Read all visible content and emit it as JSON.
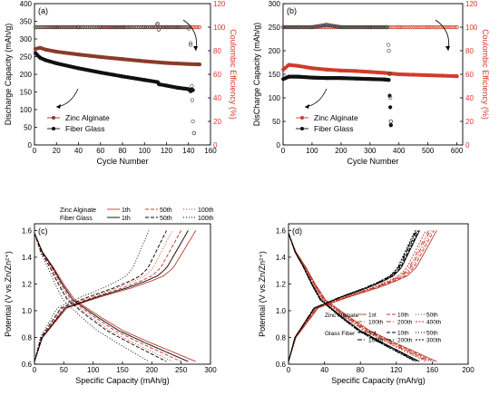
{
  "chart_data": [
    {
      "panel": "(a)",
      "type": "scatter",
      "xlabel": "Cycle Number",
      "ylabel": "Discharge Capacity (mAh/g)",
      "y2label": "Coulombic Efficiency (%)",
      "xlim": [
        0,
        160
      ],
      "ylim": [
        0,
        400
      ],
      "y2lim": [
        0,
        120
      ],
      "xticks": [
        0,
        20,
        40,
        60,
        80,
        100,
        120,
        140,
        160
      ],
      "yticks": [
        0,
        50,
        100,
        150,
        200,
        250,
        300,
        350,
        400
      ],
      "y2ticks": [
        0,
        20,
        40,
        60,
        80,
        100,
        120
      ],
      "y2ticklabels": [
        "0",
        "20",
        "40",
        "60",
        "80",
        "100",
        "120"
      ],
      "legend": [
        "Zinc Alginate",
        "Fiber Glass"
      ],
      "series": [
        {
          "name": "Zinc Alginate",
          "axis": "left",
          "color": "#8b3a2a",
          "x": [
            1,
            5,
            10,
            20,
            40,
            60,
            80,
            100,
            120,
            140,
            150
          ],
          "y": [
            272,
            275,
            270,
            264,
            256,
            249,
            243,
            237,
            232,
            229,
            228
          ]
        },
        {
          "name": "Fiber Glass",
          "axis": "left",
          "color": "#111111",
          "x": [
            1,
            5,
            10,
            20,
            40,
            60,
            80,
            100,
            112,
            113,
            120,
            130,
            140,
            142,
            143,
            144
          ],
          "y": [
            260,
            247,
            240,
            231,
            217,
            205,
            194,
            184,
            178,
            172,
            168,
            162,
            158,
            152,
            158,
            155
          ]
        },
        {
          "name": "Zinc Alginate CE",
          "axis": "right",
          "color": "#d23b2c",
          "x": [
            1,
            20,
            40,
            60,
            80,
            100,
            120,
            140,
            150
          ],
          "y": [
            100,
            100,
            100,
            100,
            100,
            100,
            100,
            100,
            100
          ]
        },
        {
          "name": "Fiber Glass CE",
          "axis": "right",
          "color": "#444444",
          "x": [
            1,
            20,
            40,
            60,
            80,
            100,
            110,
            112,
            113,
            114,
            120,
            130,
            140,
            142,
            143,
            144,
            145
          ],
          "y": [
            100,
            100,
            100,
            100,
            100,
            100,
            100,
            103,
            98,
            100,
            100,
            100,
            100,
            85,
            50,
            20,
            10
          ]
        }
      ]
    },
    {
      "panel": "(b)",
      "type": "scatter",
      "xlabel": "Cycle Number",
      "ylabel": "DisCharge Capacity (mAh/g)",
      "y2label": "Coulombic Efficiency (%)",
      "xlim": [
        0,
        620
      ],
      "ylim": [
        0,
        300
      ],
      "y2lim": [
        0,
        120
      ],
      "xticks": [
        0,
        100,
        200,
        300,
        400,
        500,
        600
      ],
      "yticks": [
        0,
        50,
        100,
        150,
        200,
        250,
        300
      ],
      "y2ticks": [
        0,
        20,
        40,
        60,
        80,
        100,
        120
      ],
      "y2ticklabels": [
        "0",
        "20",
        "40",
        "60",
        "80",
        "100",
        "120"
      ],
      "legend": [
        "Zinc Alginate",
        "Fiber Glass"
      ],
      "series": [
        {
          "name": "Zinc Alginate",
          "axis": "left",
          "color": "#d23b2c",
          "x": [
            1,
            20,
            50,
            100,
            150,
            200,
            250,
            300,
            350,
            400,
            450,
            500,
            550,
            600
          ],
          "y": [
            160,
            170,
            168,
            163,
            160,
            158,
            157,
            155,
            153,
            150,
            149,
            148,
            147,
            146
          ]
        },
        {
          "name": "Fiber Glass",
          "axis": "left",
          "color": "#111111",
          "x": [
            1,
            20,
            50,
            100,
            150,
            200,
            250,
            300,
            350,
            365,
            370,
            372
          ],
          "y": [
            140,
            145,
            145,
            143,
            142,
            142,
            141,
            140,
            139,
            138,
            80,
            42
          ]
        },
        {
          "name": "Zinc Alginate CE",
          "axis": "right",
          "color": "#d23b2c",
          "x": [
            1,
            100,
            200,
            300,
            400,
            500,
            600
          ],
          "y": [
            100,
            100,
            100,
            100,
            100,
            100,
            100
          ]
        },
        {
          "name": "Fiber Glass CE",
          "axis": "right",
          "color": "#444444",
          "x": [
            1,
            100,
            150,
            200,
            300,
            360,
            365,
            368,
            370,
            372
          ],
          "y": [
            100,
            100,
            102,
            100,
            100,
            100,
            80,
            60,
            40,
            20
          ]
        }
      ]
    },
    {
      "panel": "(c)",
      "type": "line",
      "xlabel": "Specific Capacity (mAh/g)",
      "ylabel": "Potential (V vs.Zn/Zn²⁺)",
      "xlim": [
        0,
        300
      ],
      "ylim": [
        0.6,
        1.65
      ],
      "xticks": [
        0,
        50,
        100,
        150,
        200,
        250,
        300
      ],
      "yticks": [
        0.6,
        0.8,
        1.0,
        1.2,
        1.4,
        1.6
      ],
      "yticklabels": [
        "0.6",
        "0.8",
        "1.0",
        "1.2",
        "1.4",
        "1.6"
      ],
      "legend_rows": [
        {
          "label": "Zinc Alginate",
          "items": [
            "1th",
            "50th",
            "100th"
          ]
        },
        {
          "label": "Fiber Glass",
          "items": [
            "1th",
            "50th",
            "100th"
          ]
        }
      ],
      "series": [
        {
          "name": "Zinc Alginate",
          "cycle": "1th",
          "color": "#c0392b",
          "dash": "solid",
          "capacity": 275
        },
        {
          "name": "Zinc Alginate",
          "cycle": "50th",
          "color": "#c0392b",
          "dash": "dash",
          "capacity": 250
        },
        {
          "name": "Zinc Alginate",
          "cycle": "100th",
          "color": "#c0392b",
          "dash": "dot",
          "capacity": 235
        },
        {
          "name": "Fiber Glass",
          "cycle": "1th",
          "color": "#000000",
          "dash": "solid",
          "capacity": 262
        },
        {
          "name": "Fiber Glass",
          "cycle": "50th",
          "color": "#000000",
          "dash": "dash",
          "capacity": 225
        },
        {
          "name": "Fiber Glass",
          "cycle": "100th",
          "color": "#000000",
          "dash": "dot",
          "capacity": 195
        }
      ]
    },
    {
      "panel": "(d)",
      "type": "line",
      "xlabel": "Specific Capacity (mAh/g)",
      "ylabel": "Potential (V vs.Zn/Zn²⁺)",
      "xlim": [
        0,
        200
      ],
      "ylim": [
        0.6,
        1.65
      ],
      "xticks": [
        0,
        40,
        80,
        120,
        160,
        200
      ],
      "yticks": [
        0.6,
        0.8,
        1.0,
        1.2,
        1.4,
        1.6
      ],
      "yticklabels": [
        "0.6",
        "0.8",
        "1.0",
        "1.2",
        "1.4",
        "1.6"
      ],
      "legend_rows": [
        {
          "label": "Zinc Alginate",
          "items": [
            "1st",
            "10th",
            "50th",
            "100th",
            "200th",
            "400th"
          ]
        },
        {
          "label": "Glass Fiber",
          "items": [
            "1st",
            "10th",
            "50th",
            "100th",
            "200th",
            "300th"
          ]
        }
      ],
      "series": [
        {
          "name": "Zinc Alginate",
          "cycle": "1st",
          "color": "#c0392b",
          "dash": "solid",
          "capacity": 165
        },
        {
          "name": "Zinc Alginate",
          "cycle": "10th",
          "color": "#c0392b",
          "dash": "dash",
          "capacity": 162
        },
        {
          "name": "Zinc Alginate",
          "cycle": "50th",
          "color": "#c0392b",
          "dash": "dot",
          "capacity": 160
        },
        {
          "name": "Zinc Alginate",
          "cycle": "100th",
          "color": "#c0392b",
          "dash": "dashdot",
          "capacity": 158
        },
        {
          "name": "Zinc Alginate",
          "cycle": "200th",
          "color": "#c0392b",
          "dash": "dashdotdot",
          "capacity": 156
        },
        {
          "name": "Zinc Alginate",
          "cycle": "400th",
          "color": "#c0392b",
          "dash": "shortdot",
          "capacity": 153
        },
        {
          "name": "Glass Fiber",
          "cycle": "1st",
          "color": "#000000",
          "dash": "solid",
          "capacity": 146
        },
        {
          "name": "Glass Fiber",
          "cycle": "10th",
          "color": "#000000",
          "dash": "dash",
          "capacity": 145
        },
        {
          "name": "Glass Fiber",
          "cycle": "50th",
          "color": "#000000",
          "dash": "dot",
          "capacity": 144
        },
        {
          "name": "Glass Fiber",
          "cycle": "100th",
          "color": "#000000",
          "dash": "dashdot",
          "capacity": 143
        },
        {
          "name": "Glass Fiber",
          "cycle": "200th",
          "color": "#000000",
          "dash": "dashdotdot",
          "capacity": 142
        },
        {
          "name": "Glass Fiber",
          "cycle": "300th",
          "color": "#000000",
          "dash": "shortdot",
          "capacity": 141
        }
      ]
    }
  ]
}
